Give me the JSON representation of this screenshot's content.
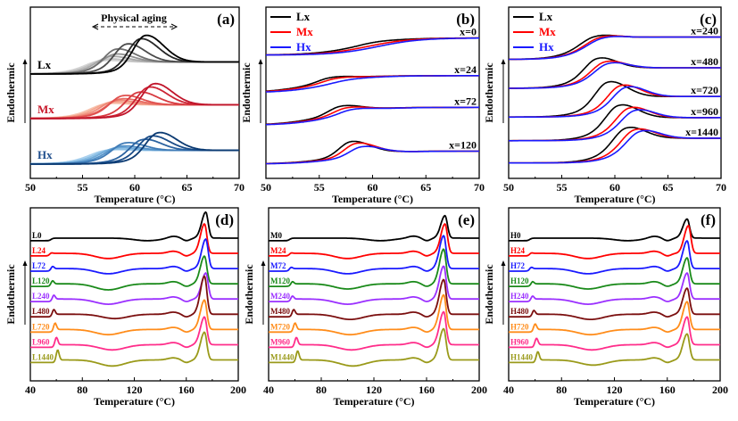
{
  "chart_data": [
    {
      "panel": "(a)",
      "type": "line",
      "xlim": [
        50,
        70
      ],
      "xticks": [
        50,
        55,
        60,
        65,
        70
      ],
      "xlabel": "Temperature (°C)",
      "ylabel": "Endothermic",
      "annotation": "Physical aging",
      "groups": [
        {
          "label": "Lx",
          "label_color": "#000000",
          "baseline": 61,
          "step": 7,
          "colors": [
            "#d4d4d4",
            "#c0c0c0",
            "#a8a8a8",
            "#909090",
            "#707070",
            "#4a4a4a",
            "#262626",
            "#000000"
          ],
          "peak_temperature": [
            56.5,
            57,
            57.5,
            58,
            58.2,
            59.2,
            60.5,
            61
          ],
          "peak_height": [
            2,
            3,
            4.5,
            6,
            9,
            12,
            15,
            17
          ]
        },
        {
          "label": "Mx",
          "label_color": "#c8182a",
          "baseline": 35,
          "step": 8,
          "colors": [
            "#f7c3ae",
            "#f4a58e",
            "#ee8a78",
            "#e86c62",
            "#e0504e",
            "#d73a40",
            "#cc2434",
            "#c0142a"
          ],
          "peak_temperature": [
            57,
            57.5,
            58,
            58.5,
            58.8,
            60.3,
            61.3,
            61.8
          ],
          "peak_height": [
            2,
            3,
            4,
            5,
            7,
            9,
            12,
            14
          ]
        },
        {
          "label": "Hx",
          "label_color": "#1f4e8c",
          "baseline": 8.4,
          "step": 8,
          "colors": [
            "#a8d0ee",
            "#8cbfe4",
            "#6fa9d8",
            "#5592c8",
            "#3f7bb6",
            "#2c63a0",
            "#1a4c88",
            "#0b3a72"
          ],
          "peak_temperature": [
            57,
            57.5,
            58,
            58.5,
            59,
            60.7,
            61.5,
            62.2
          ],
          "peak_height": [
            1.5,
            2,
            3,
            4,
            6,
            8,
            10,
            12
          ]
        }
      ]
    },
    {
      "panel": "(b)",
      "type": "line",
      "xlim": [
        50,
        70
      ],
      "xticks": [
        50,
        55,
        60,
        65,
        70
      ],
      "xlabel": "Temperature (°C)",
      "ylabel": "Endothermic",
      "legend": [
        {
          "name": "Lx",
          "color": "#000000"
        },
        {
          "name": "Mx",
          "color": "#ff0000"
        },
        {
          "name": "Hx",
          "color": "#1a1aff"
        }
      ],
      "groups": [
        {
          "label": "x=0",
          "baseline": 72,
          "step": 10,
          "peak_temperature": [
            60,
            61,
            62
          ],
          "peak_height": [
            0.5,
            0,
            0
          ]
        },
        {
          "label": "x=24",
          "baseline": 50,
          "step": 10,
          "peak_temperature": [
            56,
            56.5,
            57.5
          ],
          "peak_height": [
            2,
            1.5,
            0.5
          ]
        },
        {
          "label": "x=72",
          "baseline": 31,
          "step": 10.5,
          "peak_temperature": [
            57,
            57.5,
            58
          ],
          "peak_height": [
            4,
            3,
            2
          ]
        },
        {
          "label": "x=120",
          "baseline": 8.4,
          "step": 7.5,
          "peak_temperature": [
            58,
            58.5,
            59
          ],
          "peak_height": [
            8,
            7,
            5
          ]
        }
      ]
    },
    {
      "panel": "(c)",
      "type": "line",
      "xlim": [
        50,
        70
      ],
      "xticks": [
        50,
        55,
        60,
        65,
        70
      ],
      "xlabel": "Temperature (°C)",
      "ylabel": "Endothermic",
      "legend": [
        {
          "name": "Lx",
          "color": "#000000"
        },
        {
          "name": "Mx",
          "color": "#ff0000"
        },
        {
          "name": "Hx",
          "color": "#1a1aff"
        }
      ],
      "groups": [
        {
          "label": "x=240",
          "baseline": 69.5,
          "step": 13,
          "peak_temperature": [
            58,
            58.5,
            58.7
          ],
          "peak_height": [
            3,
            2.5,
            2
          ]
        },
        {
          "label": "x=480",
          "baseline": 52.6,
          "step": 12,
          "peak_temperature": [
            58.3,
            59,
            59.3
          ],
          "peak_height": [
            8,
            6,
            5
          ]
        },
        {
          "label": "x=720",
          "baseline": 35.8,
          "step": 12,
          "peak_temperature": [
            59.3,
            60.5,
            61
          ],
          "peak_height": [
            11,
            9,
            8
          ]
        },
        {
          "label": "x=960",
          "baseline": 22,
          "step": 13.5,
          "peak_temperature": [
            60.3,
            61.3,
            61.8
          ],
          "peak_height": [
            10,
            8.5,
            7
          ]
        },
        {
          "label": "x=1440",
          "baseline": 9,
          "step": 14.5,
          "peak_temperature": [
            61,
            61.8,
            62.3
          ],
          "peak_height": [
            9,
            8,
            7
          ]
        }
      ]
    },
    {
      "panel": "(d)",
      "type": "line",
      "xlim": [
        40,
        200
      ],
      "xticks": [
        40,
        80,
        120,
        160,
        200
      ],
      "xlabel": "Temperature (°C)",
      "ylabel": "Endothermic",
      "series": [
        {
          "name": "L0",
          "color": "#000000",
          "aging_peak_T": 57,
          "aging_peak_height": 0,
          "exotherm_T": 130,
          "exotherm_depth": 1.5,
          "melting_T": 175,
          "melting_height": 15
        },
        {
          "name": "L24",
          "color": "#ff0000",
          "aging_peak_T": 56,
          "aging_peak_height": 0.5,
          "exotherm_T": 100,
          "exotherm_depth": 3,
          "melting_T": 174,
          "melting_height": 17
        },
        {
          "name": "L72",
          "color": "#1a1aff",
          "aging_peak_T": 57,
          "aging_peak_height": 1.5,
          "exotherm_T": 100,
          "exotherm_depth": 3,
          "melting_T": 175,
          "melting_height": 17
        },
        {
          "name": "L120",
          "color": "#1a8a1a",
          "aging_peak_T": 57,
          "aging_peak_height": 2,
          "exotherm_T": 100,
          "exotherm_depth": 3.5,
          "melting_T": 174,
          "melting_height": 16
        },
        {
          "name": "L240",
          "color": "#9b30ff",
          "aging_peak_T": 58,
          "aging_peak_height": 2.5,
          "exotherm_T": 100,
          "exotherm_depth": 3,
          "melting_T": 175,
          "melting_height": 15
        },
        {
          "name": "L480",
          "color": "#7b0f0f",
          "aging_peak_T": 58,
          "aging_peak_height": 3,
          "exotherm_T": 105,
          "exotherm_depth": 2.5,
          "melting_T": 174,
          "melting_height": 22
        },
        {
          "name": "L720",
          "color": "#ff8c1a",
          "aging_peak_T": 59,
          "aging_peak_height": 4,
          "exotherm_T": 100,
          "exotherm_depth": 3,
          "melting_T": 174,
          "melting_height": 17
        },
        {
          "name": "L960",
          "color": "#ff2d8a",
          "aging_peak_T": 60,
          "aging_peak_height": 4.5,
          "exotherm_T": 103,
          "exotherm_depth": 3,
          "melting_T": 174,
          "melting_height": 16
        },
        {
          "name": "L1440",
          "color": "#9a9a1a",
          "aging_peak_T": 61,
          "aging_peak_height": 6,
          "exotherm_T": 103,
          "exotherm_depth": 3.5,
          "melting_T": 174,
          "melting_height": 16
        }
      ]
    },
    {
      "panel": "(e)",
      "type": "line",
      "xlim": [
        40,
        200
      ],
      "xticks": [
        40,
        80,
        120,
        160,
        200
      ],
      "xlabel": "Temperature (°C)",
      "ylabel": "Endothermic",
      "series": [
        {
          "name": "M0",
          "color": "#000000",
          "aging_peak_T": 57,
          "aging_peak_height": 0,
          "exotherm_T": 125,
          "exotherm_depth": 1.5,
          "melting_T": 174,
          "melting_height": 13
        },
        {
          "name": "M24",
          "color": "#ff0000",
          "aging_peak_T": 57,
          "aging_peak_height": 0.5,
          "exotherm_T": 100,
          "exotherm_depth": 3,
          "melting_T": 174,
          "melting_height": 17
        },
        {
          "name": "M72",
          "color": "#1a1aff",
          "aging_peak_T": 57,
          "aging_peak_height": 1,
          "exotherm_T": 100,
          "exotherm_depth": 3,
          "melting_T": 173,
          "melting_height": 19
        },
        {
          "name": "M120",
          "color": "#1a8a1a",
          "aging_peak_T": 58,
          "aging_peak_height": 1.5,
          "exotherm_T": 100,
          "exotherm_depth": 3,
          "melting_T": 173,
          "melting_height": 20
        },
        {
          "name": "M240",
          "color": "#9b30ff",
          "aging_peak_T": 58,
          "aging_peak_height": 2,
          "exotherm_T": 100,
          "exotherm_depth": 3,
          "melting_T": 173,
          "melting_height": 19
        },
        {
          "name": "M480",
          "color": "#7b0f0f",
          "aging_peak_T": 59,
          "aging_peak_height": 3,
          "exotherm_T": 102,
          "exotherm_depth": 3,
          "melting_T": 173,
          "melting_height": 20
        },
        {
          "name": "M720",
          "color": "#ff8c1a",
          "aging_peak_T": 60,
          "aging_peak_height": 4,
          "exotherm_T": 102,
          "exotherm_depth": 3,
          "melting_T": 173,
          "melting_height": 20
        },
        {
          "name": "M960",
          "color": "#ff2d8a",
          "aging_peak_T": 61,
          "aging_peak_height": 4.5,
          "exotherm_T": 103,
          "exotherm_depth": 3,
          "melting_T": 173,
          "melting_height": 19
        },
        {
          "name": "M1440",
          "color": "#9a9a1a",
          "aging_peak_T": 62,
          "aging_peak_height": 5.5,
          "exotherm_T": 104,
          "exotherm_depth": 3.5,
          "melting_T": 173,
          "melting_height": 18
        }
      ]
    },
    {
      "panel": "(f)",
      "type": "line",
      "xlim": [
        40,
        200
      ],
      "xticks": [
        40,
        80,
        120,
        160,
        200
      ],
      "xlabel": "Temperature (°C)",
      "ylabel": "Endothermic",
      "series": [
        {
          "name": "H0",
          "color": "#000000",
          "aging_peak_T": 57,
          "aging_peak_height": 0,
          "exotherm_T": 130,
          "exotherm_depth": 1.5,
          "melting_T": 175,
          "melting_height": 11
        },
        {
          "name": "H24",
          "color": "#ff0000",
          "aging_peak_T": 57,
          "aging_peak_height": 0.5,
          "exotherm_T": 100,
          "exotherm_depth": 3,
          "melting_T": 176,
          "melting_height": 16
        },
        {
          "name": "H72",
          "color": "#1a1aff",
          "aging_peak_T": 57,
          "aging_peak_height": 1,
          "exotherm_T": 100,
          "exotherm_depth": 3,
          "melting_T": 175,
          "melting_height": 16
        },
        {
          "name": "H120",
          "color": "#1a8a1a",
          "aging_peak_T": 58,
          "aging_peak_height": 1.5,
          "exotherm_T": 100,
          "exotherm_depth": 3,
          "melting_T": 175,
          "melting_height": 15
        },
        {
          "name": "H240",
          "color": "#9b30ff",
          "aging_peak_T": 58,
          "aging_peak_height": 2,
          "exotherm_T": 100,
          "exotherm_depth": 3,
          "melting_T": 175,
          "melting_height": 15
        },
        {
          "name": "H480",
          "color": "#7b0f0f",
          "aging_peak_T": 59,
          "aging_peak_height": 2.5,
          "exotherm_T": 102,
          "exotherm_depth": 3,
          "melting_T": 175,
          "melting_height": 15
        },
        {
          "name": "H720",
          "color": "#ff8c1a",
          "aging_peak_T": 60,
          "aging_peak_height": 3.5,
          "exotherm_T": 102,
          "exotherm_depth": 3,
          "melting_T": 175,
          "melting_height": 16
        },
        {
          "name": "H960",
          "color": "#ff2d8a",
          "aging_peak_T": 61,
          "aging_peak_height": 4,
          "exotherm_T": 103,
          "exotherm_depth": 3,
          "melting_T": 175,
          "melting_height": 16
        },
        {
          "name": "H1440",
          "color": "#9a9a1a",
          "aging_peak_T": 62,
          "aging_peak_height": 5,
          "exotherm_T": 104,
          "exotherm_depth": 3,
          "melting_T": 175,
          "melting_height": 15
        }
      ]
    }
  ]
}
